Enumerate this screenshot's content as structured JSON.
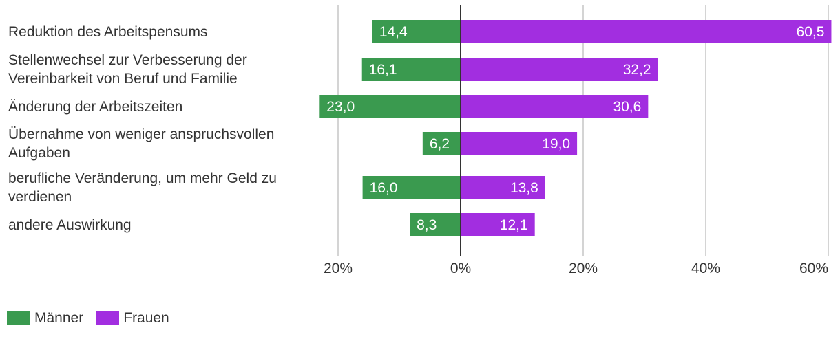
{
  "chart_data": {
    "type": "bar",
    "orientation": "horizontal-diverging",
    "categories": [
      "Reduktion des Arbeitspensums",
      "Stellenwechsel zur Verbesserung der Vereinbarkeit von Beruf und Familie",
      "Änderung der Arbeitszeiten",
      "Übernahme von weniger anspruchsvollen Aufgaben",
      "berufliche Veränderung, um mehr Geld zu verdienen",
      "andere Auswirkung"
    ],
    "series": [
      {
        "name": "Männer",
        "color": "#3a9a4f",
        "direction": "left",
        "values": [
          14.4,
          16.1,
          23.0,
          6.2,
          16.0,
          8.3
        ],
        "labels": [
          "14,4",
          "16,1",
          "23,0",
          "6,2",
          "16,0",
          "8,3"
        ]
      },
      {
        "name": "Frauen",
        "color": "#a22ee0",
        "direction": "right",
        "values": [
          60.5,
          32.2,
          30.6,
          19.0,
          13.8,
          12.1
        ],
        "labels": [
          "60,5",
          "32,2",
          "30,6",
          "19,0",
          "13,8",
          "12,1"
        ]
      }
    ],
    "xlim": [
      -20,
      60
    ],
    "ticks": [
      -20,
      0,
      20,
      40,
      60
    ],
    "tick_labels": [
      "20%",
      "0%",
      "20%",
      "40%",
      "60%"
    ],
    "grid": true,
    "legend_position": "bottom-left",
    "title": "",
    "xlabel": "",
    "ylabel": ""
  },
  "legend": {
    "men": "Männer",
    "women": "Frauen"
  }
}
